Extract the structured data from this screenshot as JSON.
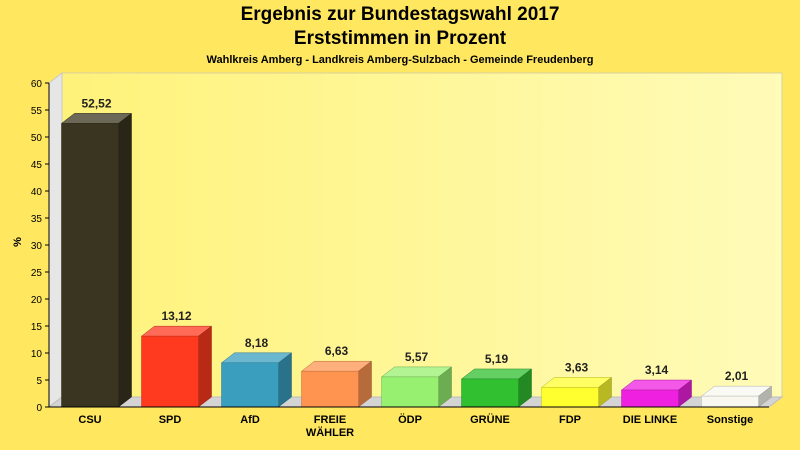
{
  "chart_data": {
    "type": "bar",
    "title": "Ergebnis zur Bundestagswahl 2017",
    "subtitle": "Erststimmen in Prozent",
    "caption": "Wahlkreis Amberg - Landkreis Amberg-Sulzbach - Gemeinde Freudenberg",
    "ylabel": "%",
    "xlabel": "",
    "ylim": [
      0,
      60
    ],
    "yticks": [
      "0",
      "5",
      "10",
      "15",
      "20",
      "25",
      "30",
      "35",
      "40",
      "45",
      "50",
      "55",
      "60"
    ],
    "grid": false,
    "categories": [
      [
        "CSU"
      ],
      [
        "SPD"
      ],
      [
        "AfD"
      ],
      [
        "FREIE",
        "WÄHLER"
      ],
      [
        "ÖDP"
      ],
      [
        "GRÜNE"
      ],
      [
        "FDP"
      ],
      [
        "DIE LINKE"
      ],
      [
        "Sonstige"
      ]
    ],
    "values": [
      52.52,
      13.12,
      8.18,
      6.63,
      5.57,
      5.19,
      3.63,
      3.14,
      2.01
    ],
    "value_labels": [
      "52,52",
      "13,12",
      "8,18",
      "6,63",
      "5,57",
      "5,19",
      "3,63",
      "3,14",
      "2,01"
    ],
    "colors": [
      "#3a3520",
      "#ff3a1e",
      "#3a9fbf",
      "#ff9450",
      "#98f070",
      "#30c030",
      "#ffff30",
      "#f020e0",
      "#f8f8f0"
    ]
  }
}
